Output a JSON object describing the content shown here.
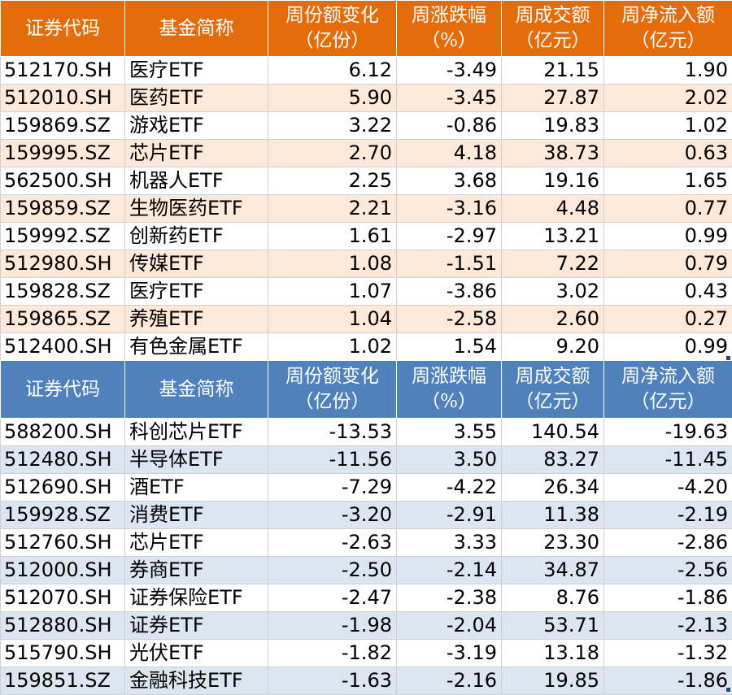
{
  "headers": {
    "code": "证券代码",
    "name": "基金简称",
    "share_change": "周份额变化\n（亿份）",
    "change_pct": "周涨跌幅\n（%）",
    "volume": "周成交额\n（亿元）",
    "net_inflow": "周净流入额\n（亿元）"
  },
  "inflow_table": [
    {
      "code": "512170.SH",
      "name": "医疗ETF",
      "share_change": "6.12",
      "change_pct": "-3.49",
      "volume": "21.15",
      "net_inflow": "1.90"
    },
    {
      "code": "512010.SH",
      "name": "医药ETF",
      "share_change": "5.90",
      "change_pct": "-3.45",
      "volume": "27.87",
      "net_inflow": "2.02"
    },
    {
      "code": "159869.SZ",
      "name": "游戏ETF",
      "share_change": "3.22",
      "change_pct": "-0.86",
      "volume": "19.83",
      "net_inflow": "1.02"
    },
    {
      "code": "159995.SZ",
      "name": "芯片ETF",
      "share_change": "2.70",
      "change_pct": "4.18",
      "volume": "38.73",
      "net_inflow": "0.63"
    },
    {
      "code": "562500.SH",
      "name": "机器人ETF",
      "share_change": "2.25",
      "change_pct": "3.68",
      "volume": "19.16",
      "net_inflow": "1.65"
    },
    {
      "code": "159859.SZ",
      "name": "生物医药ETF",
      "share_change": "2.21",
      "change_pct": "-3.16",
      "volume": "4.48",
      "net_inflow": "0.77"
    },
    {
      "code": "159992.SZ",
      "name": "创新药ETF",
      "share_change": "1.61",
      "change_pct": "-2.97",
      "volume": "13.21",
      "net_inflow": "0.99"
    },
    {
      "code": "512980.SH",
      "name": "传媒ETF",
      "share_change": "1.08",
      "change_pct": "-1.51",
      "volume": "7.22",
      "net_inflow": "0.79"
    },
    {
      "code": "159828.SZ",
      "name": "医疗ETF",
      "share_change": "1.07",
      "change_pct": "-3.86",
      "volume": "3.02",
      "net_inflow": "0.43"
    },
    {
      "code": "159865.SZ",
      "name": "养殖ETF",
      "share_change": "1.04",
      "change_pct": "-2.58",
      "volume": "2.60",
      "net_inflow": "0.27"
    },
    {
      "code": "512400.SH",
      "name": "有色金属ETF",
      "share_change": "1.02",
      "change_pct": "1.54",
      "volume": "9.20",
      "net_inflow": "0.99"
    }
  ],
  "outflow_table": [
    {
      "code": "588200.SH",
      "name": "科创芯片ETF",
      "share_change": "-13.53",
      "change_pct": "3.55",
      "volume": "140.54",
      "net_inflow": "-19.63"
    },
    {
      "code": "512480.SH",
      "name": "半导体ETF",
      "share_change": "-11.56",
      "change_pct": "3.50",
      "volume": "83.27",
      "net_inflow": "-11.45"
    },
    {
      "code": "512690.SH",
      "name": "酒ETF",
      "share_change": "-7.29",
      "change_pct": "-4.22",
      "volume": "26.34",
      "net_inflow": "-4.20"
    },
    {
      "code": "159928.SZ",
      "name": "消费ETF",
      "share_change": "-3.20",
      "change_pct": "-2.91",
      "volume": "11.38",
      "net_inflow": "-2.19"
    },
    {
      "code": "512760.SH",
      "name": "芯片ETF",
      "share_change": "-2.63",
      "change_pct": "3.33",
      "volume": "23.30",
      "net_inflow": "-2.86"
    },
    {
      "code": "512000.SH",
      "name": "券商ETF",
      "share_change": "-2.50",
      "change_pct": "-2.14",
      "volume": "34.87",
      "net_inflow": "-2.56"
    },
    {
      "code": "512070.SH",
      "name": "证券保险ETF",
      "share_change": "-2.47",
      "change_pct": "-2.38",
      "volume": "8.76",
      "net_inflow": "-1.86"
    },
    {
      "code": "512880.SH",
      "name": "证券ETF",
      "share_change": "-1.98",
      "change_pct": "-2.04",
      "volume": "53.71",
      "net_inflow": "-2.13"
    },
    {
      "code": "515790.SH",
      "name": "光伏ETF",
      "share_change": "-1.82",
      "change_pct": "-3.19",
      "volume": "13.18",
      "net_inflow": "-1.32"
    },
    {
      "code": "159851.SZ",
      "name": "金融科技ETF",
      "share_change": "-1.63",
      "change_pct": "-2.16",
      "volume": "19.85",
      "net_inflow": "-1.86"
    }
  ],
  "colors": {
    "inflow_header": "#E46C0A",
    "inflow_stripe": "#FDE9D9",
    "outflow_header": "#4F81BD",
    "outflow_stripe": "#DCE6F1"
  }
}
